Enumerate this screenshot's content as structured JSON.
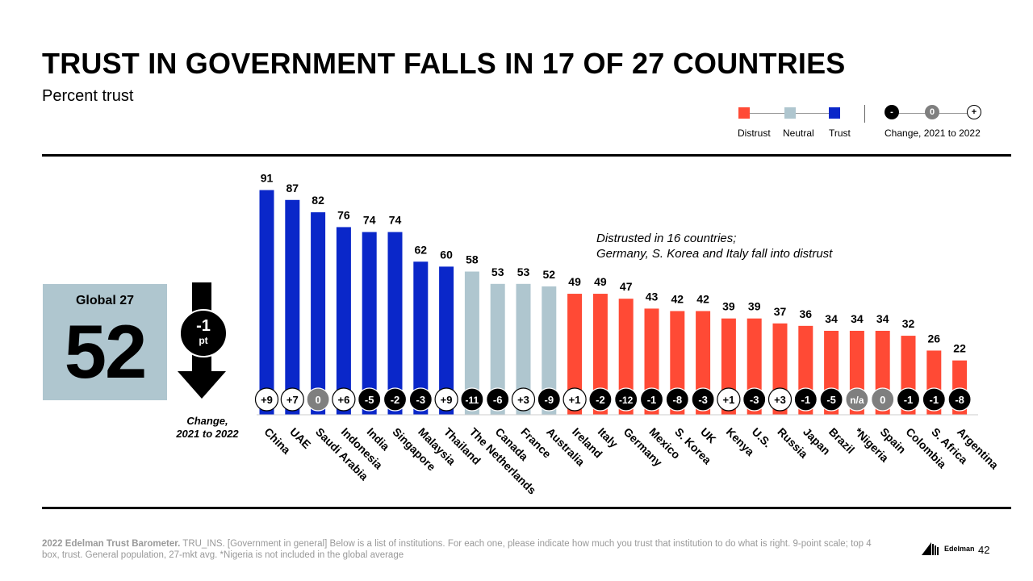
{
  "header": {
    "title": "TRUST IN GOVERNMENT FALLS IN 17 OF 27 COUNTRIES",
    "subtitle": "Percent trust"
  },
  "legend": {
    "distrust": "Distrust",
    "neutral": "Neutral",
    "trust": "Trust",
    "minus": "-",
    "zero": "0",
    "plus": "+",
    "change": "Change, 2021 to 2022"
  },
  "global": {
    "label": "Global 27",
    "value": "52",
    "change": "-1",
    "change_unit": "pt",
    "change_caption_1": "Change,",
    "change_caption_2": "2021 to 2022"
  },
  "annotation": {
    "line1": "Distrusted in 16 countries;",
    "line2": "Germany, S. Korea and Italy fall into distrust"
  },
  "colors": {
    "trust": "#0a27c9",
    "neutral": "#afc6cf",
    "distrust": "#ff4a35",
    "change_negative": "#000000",
    "change_zero": "#7f7f7f",
    "change_positive": "#ffffff"
  },
  "chart_data": {
    "type": "bar",
    "ylim": [
      0,
      100
    ],
    "categories": [
      "China",
      "UAE",
      "Saudi Arabia",
      "Indonesia",
      "India",
      "Singapore",
      "Malaysia",
      "Thailand",
      "The Netherlands",
      "Canada",
      "France",
      "Australia",
      "Ireland",
      "Italy",
      "Germany",
      "Mexico",
      "S. Korea",
      "UK",
      "Kenya",
      "U.S.",
      "Russia",
      "Japan",
      "Brazil",
      "*Nigeria",
      "Spain",
      "Colombia",
      "S. Africa",
      "Argentina"
    ],
    "values": [
      91,
      87,
      82,
      76,
      74,
      74,
      62,
      60,
      58,
      53,
      53,
      52,
      49,
      49,
      47,
      43,
      42,
      42,
      39,
      39,
      37,
      36,
      34,
      34,
      34,
      32,
      26,
      22
    ],
    "level": [
      "trust",
      "trust",
      "trust",
      "trust",
      "trust",
      "trust",
      "trust",
      "trust",
      "neutral",
      "neutral",
      "neutral",
      "neutral",
      "distrust",
      "distrust",
      "distrust",
      "distrust",
      "distrust",
      "distrust",
      "distrust",
      "distrust",
      "distrust",
      "distrust",
      "distrust",
      "distrust",
      "distrust",
      "distrust",
      "distrust",
      "distrust"
    ],
    "change_labels": [
      "+9",
      "+7",
      "0",
      "+6",
      "-5",
      "-2",
      "-3",
      "+9",
      "-11",
      "-6",
      "+3",
      "-9",
      "+1",
      "-2",
      "-12",
      "-1",
      "-8",
      "-3",
      "+1",
      "-3",
      "+3",
      "-1",
      "-5",
      "n/a",
      "0",
      "-1",
      "-1",
      "-8"
    ]
  },
  "footnote": {
    "source": "2022 Edelman Trust Barometer.",
    "text": " TRU_INS. [Government in general] Below is a list of institutions. For each one, please indicate how much you trust that institution to do what is right. 9-point scale; top 4 box, trust. General population, 27-mkt avg. *Nigeria is not included in the global average"
  },
  "brand": {
    "name": "Edelman",
    "page": "42"
  }
}
